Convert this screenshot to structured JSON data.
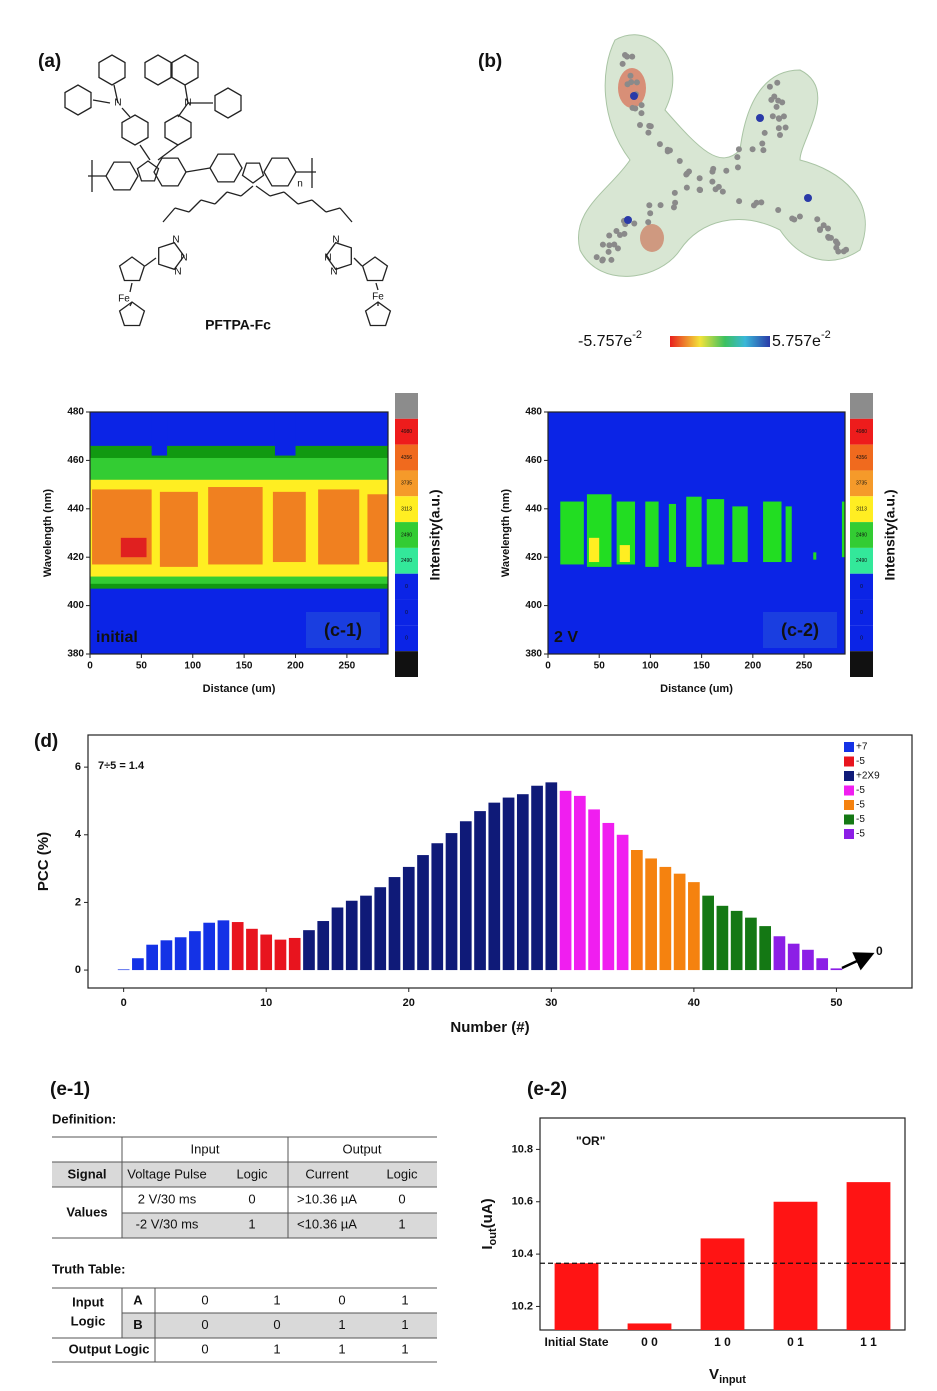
{
  "panel_a": {
    "label": "(a)",
    "compound": "PFTPA-Fc",
    "atoms": [
      "N",
      "N",
      "n",
      "N",
      "N",
      "N",
      "N",
      "N",
      "N",
      "Fe",
      "Fe"
    ]
  },
  "panel_b": {
    "label": "(b)",
    "scale_min": {
      "base": "-5.757e",
      "exp": "-2"
    },
    "scale_max": {
      "base": "5.757e",
      "exp": "-2"
    }
  },
  "panel_d_label": "(d)",
  "chart_data": [
    {
      "type": "heatmap",
      "tag": "(c-1)",
      "annotation": "initial",
      "xlabel": "Distance (um)",
      "ylabel": "Wavelength (nm)",
      "xlim": [
        0,
        290
      ],
      "xticks": [
        0,
        50,
        100,
        150,
        200,
        250
      ],
      "ylim": [
        380,
        480
      ],
      "yticks": [
        380,
        400,
        420,
        440,
        460,
        480
      ],
      "colorbar": {
        "title": "Intensity(a.u.)",
        "colors": [
          "#8c8c8c",
          "#ee1c1c",
          "#f06a1e",
          "#f59a2a",
          "#ffee22",
          "#33cc33",
          "#33e89a",
          "#0b24e6",
          "#0b24e6",
          "#0b24e6",
          "#111111"
        ],
        "labels": [
          "4980",
          "4356",
          "3735",
          "3113",
          "2490",
          "2490",
          "0",
          "0",
          "0"
        ]
      }
    },
    {
      "type": "heatmap",
      "tag": "(c-2)",
      "annotation": "2 V",
      "xlabel": "Distance (um)",
      "ylabel": "Wavelength (nm)",
      "xlim": [
        0,
        290
      ],
      "xticks": [
        0,
        50,
        100,
        150,
        200,
        250
      ],
      "ylim": [
        380,
        480
      ],
      "yticks": [
        380,
        400,
        420,
        440,
        460,
        480
      ],
      "colorbar": {
        "title": "Intensity(a.u.)",
        "colors": [
          "#8c8c8c",
          "#ee1c1c",
          "#f06a1e",
          "#f59a2a",
          "#ffee22",
          "#33cc33",
          "#33e89a",
          "#0b24e6",
          "#0b24e6",
          "#0b24e6",
          "#111111"
        ],
        "labels": [
          "4980",
          "4356",
          "3735",
          "3113",
          "2490",
          "2490",
          "0",
          "0",
          "0"
        ]
      }
    },
    {
      "type": "bar",
      "xlabel": "Number (#)",
      "ylabel": "PCC (%)",
      "annotation": "7÷5 = 1.4",
      "arrow_label": "0",
      "legend": "upper right",
      "xlim": [
        -2.5,
        55.3
      ],
      "xticks": [
        0,
        10,
        20,
        30,
        40,
        50
      ],
      "ylim": [
        -0.53,
        6.95
      ],
      "yticks": [
        0,
        2,
        4,
        6
      ],
      "series": [
        {
          "name": "+7",
          "color": "#1432e6",
          "x": [
            0,
            1,
            2,
            3,
            4,
            5,
            6,
            7
          ],
          "values": [
            0.02,
            0.35,
            0.75,
            0.88,
            0.97,
            1.15,
            1.4,
            1.47
          ]
        },
        {
          "name": "-5",
          "color": "#e8141e",
          "x": [
            8,
            9,
            10,
            11,
            12
          ],
          "values": [
            1.42,
            1.22,
            1.05,
            0.9,
            0.95
          ]
        },
        {
          "name": "+2X9",
          "color": "#0f1a78",
          "x": [
            13,
            14,
            15,
            16,
            17,
            18,
            19,
            20,
            21,
            22,
            23,
            24,
            25,
            26,
            27,
            28,
            29,
            30
          ],
          "values": [
            1.18,
            1.45,
            1.85,
            2.05,
            2.2,
            2.45,
            2.75,
            3.05,
            3.4,
            3.75,
            4.05,
            4.4,
            4.7,
            4.95,
            5.1,
            5.2,
            5.45,
            5.55
          ]
        },
        {
          "name": "-5",
          "color": "#f01ef0",
          "x": [
            31,
            32,
            33,
            34,
            35
          ],
          "values": [
            5.3,
            5.15,
            4.75,
            4.35,
            4.0
          ]
        },
        {
          "name": "-5",
          "color": "#f5820f",
          "x": [
            36,
            37,
            38,
            39,
            40
          ],
          "values": [
            3.55,
            3.3,
            3.05,
            2.85,
            2.6
          ]
        },
        {
          "name": "-5",
          "color": "#147814",
          "x": [
            41,
            42,
            43,
            44,
            45
          ],
          "values": [
            2.2,
            1.9,
            1.75,
            1.55,
            1.3
          ]
        },
        {
          "name": "-5",
          "color": "#8c1ee6",
          "x": [
            46,
            47,
            48,
            49,
            50
          ],
          "values": [
            1.0,
            0.78,
            0.6,
            0.35,
            0.05
          ]
        }
      ]
    },
    {
      "type": "bar",
      "annotation": "\"OR\"",
      "xlabel": {
        "main": "V",
        "sub": "input"
      },
      "ylabel": {
        "main": "I",
        "sub": "out",
        "rest": "(uA)"
      },
      "categories": [
        "Initial State",
        "0 0",
        "1 0",
        "0 1",
        "1 1"
      ],
      "values": [
        10.365,
        10.135,
        10.46,
        10.6,
        10.675
      ],
      "color": "#ff1414",
      "threshold": 10.365,
      "ylim": [
        10.11,
        10.92
      ],
      "yticks": [
        10.2,
        10.4,
        10.6,
        10.8
      ]
    }
  ],
  "panel_e1": {
    "label": "(e-1)",
    "definition": {
      "title": "Definition:",
      "header": [
        "Input",
        "Output"
      ],
      "columns": [
        "Signal",
        "Voltage Pulse",
        "Logic",
        "Current",
        "Logic"
      ],
      "row_label": "Values",
      "rows": [
        [
          "2 V/30 ms",
          "0",
          ">10.36 µA",
          "0"
        ],
        [
          "-2 V/30 ms",
          "1",
          "<10.36 µA",
          "1"
        ]
      ]
    },
    "truth_table": {
      "title": "Truth Table:",
      "input_label": [
        "Input",
        "Logic"
      ],
      "rows": [
        {
          "label": "A",
          "values": [
            "0",
            "1",
            "0",
            "1"
          ]
        },
        {
          "label": "B",
          "values": [
            "0",
            "0",
            "1",
            "1"
          ]
        },
        {
          "label": "Output Logic",
          "values": [
            "0",
            "1",
            "1",
            "1"
          ]
        }
      ]
    }
  },
  "panel_e2_label": "(e-2)"
}
